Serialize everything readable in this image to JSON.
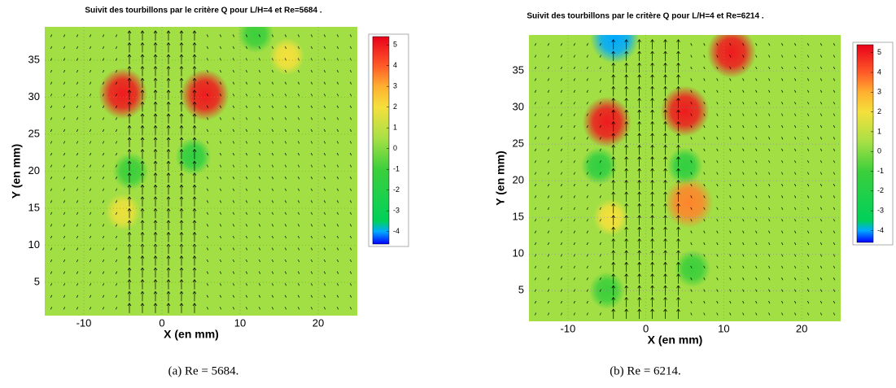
{
  "chart_data": [
    {
      "type": "contour",
      "title": "Suivit des tourbillons par le critère Q pour L/H=4 et Re=5684 .",
      "x_label": "X (en mm)",
      "y_label": "Y (en mm)",
      "caption": "(a) Re = 5684.",
      "xlim": [
        -15,
        25
      ],
      "ylim": [
        0.5,
        39.5
      ],
      "xticks": [
        -10,
        0,
        10,
        20
      ],
      "yticks": [
        5,
        10,
        15,
        20,
        25,
        30,
        35
      ],
      "grid": true,
      "base_value": 0.4,
      "peaks": [
        {
          "x": -5,
          "y": 30.5,
          "value": 5
        },
        {
          "x": 5.5,
          "y": 30.3,
          "value": 5
        },
        {
          "x": 16,
          "y": 35.5,
          "value": 2
        },
        {
          "x": -5,
          "y": 14.5,
          "value": 1.8
        },
        {
          "x": -4,
          "y": 20,
          "value": -1
        },
        {
          "x": 4,
          "y": 22,
          "value": -1.5
        },
        {
          "x": 12,
          "y": 38.5,
          "value": -1
        }
      ],
      "jet": [
        -5,
        5
      ],
      "colorbar": {
        "lim": [
          -4.6,
          5.4
        ],
        "ticks": [
          5,
          4,
          3,
          2,
          1,
          0,
          -1,
          -2,
          -3,
          -4
        ]
      },
      "colormap": [
        {
          "value": -4.6,
          "color": "#0000ff"
        },
        {
          "value": -4,
          "color": "#00aaff"
        },
        {
          "value": -3.5,
          "color": "#00d05a"
        },
        {
          "value": -1,
          "color": "#3ccf3c"
        },
        {
          "value": 0.5,
          "color": "#a8e046"
        },
        {
          "value": 2,
          "color": "#f5e03c"
        },
        {
          "value": 3,
          "color": "#ffb030"
        },
        {
          "value": 4,
          "color": "#ff5a28"
        },
        {
          "value": 5.4,
          "color": "#e8001a"
        }
      ]
    },
    {
      "type": "contour",
      "title": "Suivit des tourbillons par le critère Q pour L/H=4 et Re=6214 .",
      "x_label": "X (en mm)",
      "y_label": "Y (en mm)",
      "caption": "(b) Re = 6214.",
      "xlim": [
        -15,
        25
      ],
      "ylim": [
        0.8,
        39.9
      ],
      "xticks": [
        -10,
        0,
        10,
        20
      ],
      "yticks": [
        5,
        10,
        15,
        20,
        25,
        30,
        35
      ],
      "grid": true,
      "base_value": 0.4,
      "peaks": [
        {
          "x": -5,
          "y": 28,
          "value": 5
        },
        {
          "x": 5,
          "y": 29.5,
          "value": 5
        },
        {
          "x": 11,
          "y": 37.5,
          "value": 5
        },
        {
          "x": 5.5,
          "y": 17,
          "value": 3.5
        },
        {
          "x": -4.5,
          "y": 15,
          "value": 2
        },
        {
          "x": -4,
          "y": 39.5,
          "value": -4
        },
        {
          "x": -6,
          "y": 22,
          "value": -1.5
        },
        {
          "x": 5,
          "y": 22,
          "value": -1.5
        },
        {
          "x": -5,
          "y": 5,
          "value": -1
        },
        {
          "x": 6,
          "y": 8,
          "value": -1
        }
      ],
      "jet": [
        -5,
        5
      ],
      "colorbar": {
        "lim": [
          -4.6,
          5.4
        ],
        "ticks": [
          5,
          4,
          3,
          2,
          1,
          0,
          -1,
          -2,
          -3,
          -4
        ]
      },
      "colormap": [
        {
          "value": -4.6,
          "color": "#0000ff"
        },
        {
          "value": -4,
          "color": "#00aaff"
        },
        {
          "value": -3.5,
          "color": "#00d05a"
        },
        {
          "value": -1,
          "color": "#3ccf3c"
        },
        {
          "value": 0.5,
          "color": "#a8e046"
        },
        {
          "value": 2,
          "color": "#f5e03c"
        },
        {
          "value": 3,
          "color": "#ffb030"
        },
        {
          "value": 4,
          "color": "#ff5a28"
        },
        {
          "value": 5.4,
          "color": "#e8001a"
        }
      ]
    }
  ]
}
